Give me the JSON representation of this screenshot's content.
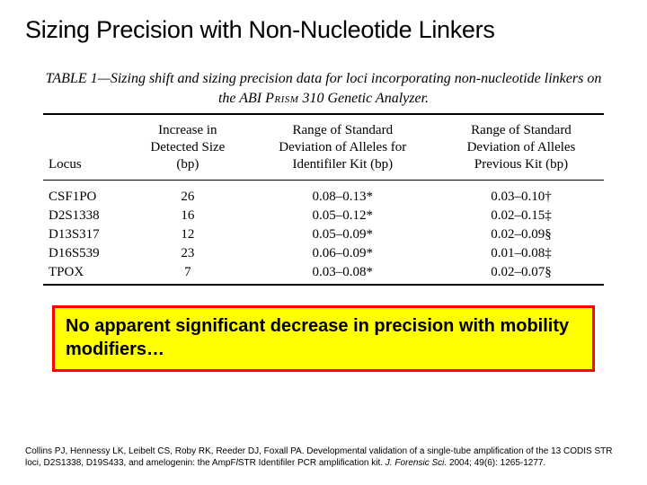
{
  "title": "Sizing Precision with Non-Nucleotide Linkers",
  "table": {
    "caption_pre": "TABLE 1—",
    "caption_text": "Sizing shift and sizing precision data for loci incorporating non-nucleotide linkers on the ABI ",
    "caption_smallcaps": "Prism",
    "caption_tail": " 310 Genetic Analyzer.",
    "columns": {
      "c1": "Locus",
      "c2": "Increase in\nDetected Size\n(bp)",
      "c3": "Range of Standard\nDeviation of Alleles for\nIdentifiler Kit (bp)",
      "c4": "Range of Standard\nDeviation of Alleles\nPrevious Kit (bp)"
    },
    "rows": [
      {
        "locus": "CSF1PO",
        "inc": "26",
        "r1": "0.08–0.13*",
        "r2": "0.03–0.10†"
      },
      {
        "locus": "D2S1338",
        "inc": "16",
        "r1": "0.05–0.12*",
        "r2": "0.02–0.15‡"
      },
      {
        "locus": "D13S317",
        "inc": "12",
        "r1": "0.05–0.09*",
        "r2": "0.02–0.09§"
      },
      {
        "locus": "D16S539",
        "inc": "23",
        "r1": "0.06–0.09*",
        "r2": "0.01–0.08‡"
      },
      {
        "locus": "TPOX",
        "inc": "7",
        "r1": "0.03–0.08*",
        "r2": "0.02–0.07§"
      }
    ],
    "header_fontsize": 15,
    "cell_fontsize": 15,
    "border_color": "#000000"
  },
  "callout": {
    "text": "No apparent significant decrease in precision with mobility modifiers…",
    "background_color": "#ffff00",
    "border_color": "#ff0000",
    "text_color": "#000000",
    "fontsize": 20
  },
  "citation": {
    "text1": "Collins PJ, Hennessy LK, Leibelt CS, Roby RK, Reeder DJ, Foxall PA. Developmental validation of a single-tube amplification of the 13 CODIS STR loci, D2S1338, D19S433, and amelogenin: the AmpF",
    "text_ell": "l",
    "text2": "STR Identifiler PCR amplification kit. ",
    "journal": "J. Forensic Sci. ",
    "text3": "2004; 49(6): 1265-1277."
  },
  "colors": {
    "page_background": "#ffffff",
    "text": "#000000"
  }
}
